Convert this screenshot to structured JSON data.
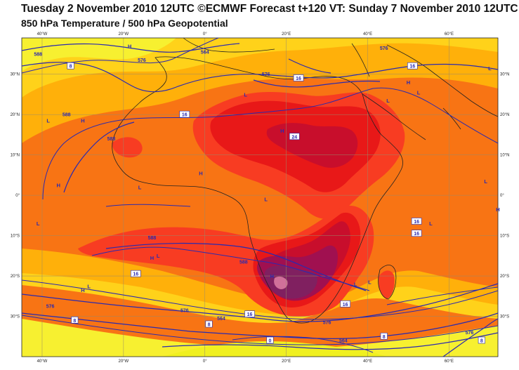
{
  "header": {
    "title": "Tuesday 2 November 2010 12UTC ©ECMWF Forecast t+120 VT: Sunday 7 November 2010 12UTC",
    "subtitle": "850 hPa Temperature / 500 hPa Geopotential"
  },
  "map": {
    "projection": "equirectangular",
    "lon_range": [
      -45,
      72
    ],
    "lat_range": [
      -40,
      39
    ],
    "lon_ticks": [
      {
        "value": -40,
        "label": "40°W"
      },
      {
        "value": -20,
        "label": "20°W"
      },
      {
        "value": 0,
        "label": "0°"
      },
      {
        "value": 20,
        "label": "20°E"
      },
      {
        "value": 40,
        "label": "40°E"
      },
      {
        "value": 60,
        "label": "60°E"
      }
    ],
    "lat_ticks": [
      {
        "value": 30,
        "label": "30°N"
      },
      {
        "value": 20,
        "label": "20°N"
      },
      {
        "value": 10,
        "label": "10°N"
      },
      {
        "value": 0,
        "label": "0°"
      },
      {
        "value": -10,
        "label": "10°S"
      },
      {
        "value": -20,
        "label": "20°S"
      },
      {
        "value": -30,
        "label": "30°S"
      }
    ],
    "temperature_labels": [
      {
        "text": "8",
        "lon": -33,
        "lat": 32
      },
      {
        "text": "16",
        "lon": -5,
        "lat": 20
      },
      {
        "text": "16",
        "lon": 23,
        "lat": 29
      },
      {
        "text": "24",
        "lon": 22,
        "lat": 14.5
      },
      {
        "text": "16",
        "lon": 51,
        "lat": 32
      },
      {
        "text": "16",
        "lon": 52,
        "lat": -6.5
      },
      {
        "text": "16",
        "lon": 52,
        "lat": -9.5
      },
      {
        "text": "16",
        "lon": -17,
        "lat": -19.5
      },
      {
        "text": "16",
        "lon": 11,
        "lat": -29.5
      },
      {
        "text": "16",
        "lon": 34.5,
        "lat": -27
      },
      {
        "text": "8",
        "lon": -32,
        "lat": -31
      },
      {
        "text": "8",
        "lon": 1,
        "lat": -32
      },
      {
        "text": "0",
        "lon": 16,
        "lat": -36
      },
      {
        "text": "8",
        "lon": 44,
        "lat": -35
      },
      {
        "text": "8",
        "lon": 68,
        "lat": -36
      }
    ],
    "geopotential_labels": [
      {
        "text": "588",
        "lon": -41,
        "lat": 35
      },
      {
        "text": "576",
        "lon": -15.5,
        "lat": 33.5
      },
      {
        "text": "564",
        "lon": 0,
        "lat": 35.5
      },
      {
        "text": "576",
        "lon": 15,
        "lat": 30
      },
      {
        "text": "576",
        "lon": 44,
        "lat": 36.5
      },
      {
        "text": "588",
        "lon": -34,
        "lat": 20
      },
      {
        "text": "588",
        "lon": -23,
        "lat": 14
      },
      {
        "text": "588",
        "lon": -13,
        "lat": -10.5
      },
      {
        "text": "588",
        "lon": 9.5,
        "lat": -16.5
      },
      {
        "text": "576",
        "lon": -38,
        "lat": -27.5
      },
      {
        "text": "576",
        "lon": -5,
        "lat": -28.5
      },
      {
        "text": "576",
        "lon": 30,
        "lat": -31.5
      },
      {
        "text": "564",
        "lon": 4,
        "lat": -30.5
      },
      {
        "text": "564",
        "lon": 34,
        "lat": -36
      },
      {
        "text": "576",
        "lon": 65,
        "lat": -34
      }
    ],
    "highs": [
      {
        "text": "H",
        "lon": -18.5,
        "lat": 36.5
      },
      {
        "text": "H",
        "lon": -30,
        "lat": 18
      },
      {
        "text": "H",
        "lon": 19,
        "lat": 15.5
      },
      {
        "text": "H",
        "lon": 50,
        "lat": 27.5
      },
      {
        "text": "H",
        "lon": -1,
        "lat": 5
      },
      {
        "text": "H",
        "lon": -36,
        "lat": 2
      },
      {
        "text": "H",
        "lon": 72,
        "lat": -4
      },
      {
        "text": "H",
        "lon": -13,
        "lat": -16
      },
      {
        "text": "H",
        "lon": -30,
        "lat": -24
      },
      {
        "text": "H",
        "lon": 16.5,
        "lat": -20.5
      }
    ],
    "lows": [
      {
        "text": "L",
        "lon": -38.5,
        "lat": 18
      },
      {
        "text": "L",
        "lon": 10,
        "lat": 24.5
      },
      {
        "text": "L",
        "lon": 45,
        "lat": 23
      },
      {
        "text": "L",
        "lon": 52.5,
        "lat": 25
      },
      {
        "text": "L",
        "lon": 70,
        "lat": 31
      },
      {
        "text": "L",
        "lon": 69,
        "lat": 3
      },
      {
        "text": "L",
        "lon": -16,
        "lat": 1.5
      },
      {
        "text": "L",
        "lon": 15,
        "lat": -1.5
      },
      {
        "text": "L",
        "lon": -41,
        "lat": -7.5
      },
      {
        "text": "L",
        "lon": 55.5,
        "lat": -7.5
      },
      {
        "text": "L",
        "lon": -11.5,
        "lat": -15.5
      },
      {
        "text": "L",
        "lon": -28.5,
        "lat": -23
      },
      {
        "text": "L",
        "lon": 37,
        "lat": -22.5
      },
      {
        "text": "L",
        "lon": 40.5,
        "lat": -22
      }
    ],
    "shading_colors": {
      "t_le_0": "#f0f020",
      "t_0_8": "#f7f030",
      "t_8_12": "#ffd21a",
      "t_12_16": "#ffb00a",
      "t_16_20": "#f87414",
      "t_20_24": "#f83c22",
      "t_24_28": "#e81818",
      "t_28_32": "#c80e2c",
      "t_32_36": "#a01050",
      "t_36_40": "#802060",
      "t_gt_40": "#d0709a",
      "contour_line": "#2a2ab0",
      "coastline": "#222222",
      "grid": "#9a8a6a"
    }
  }
}
